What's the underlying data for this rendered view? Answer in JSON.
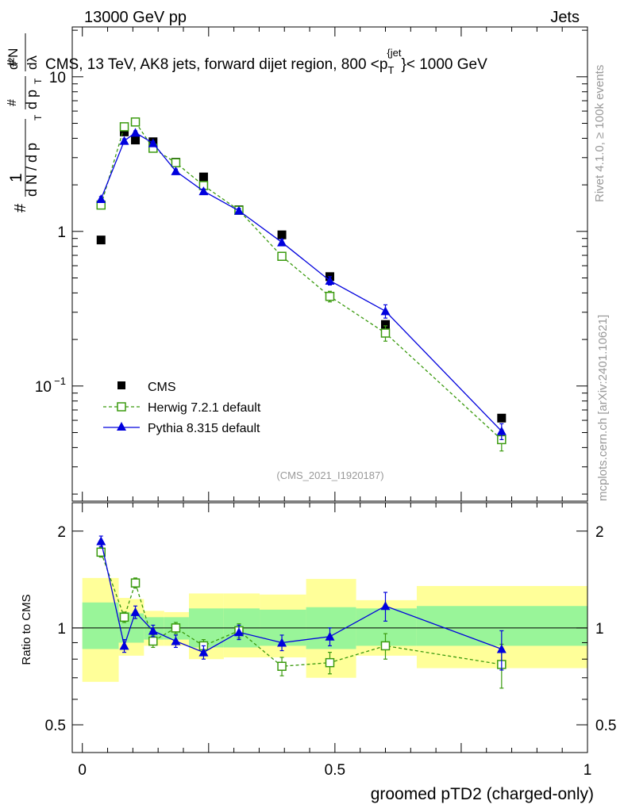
{
  "header": {
    "left": "13000 GeV pp",
    "right": "Jets"
  },
  "chart_data": [
    {
      "type": "scatter",
      "panel": "main",
      "title": "CMS, 13 TeV, AK8 jets, forward dijet region, 800 <p_T^{jet}< 1000 GeV",
      "title_parts": {
        "prefix": "CMS, 13 TeV, AK8 jets, forward dijet region, 800 <p",
        "sub": "T",
        "sup": "{jet",
        "suffix": "}< 1000 GeV"
      },
      "ylabel": "1/N dN/dp_T d²N/dp_T dλ",
      "ylabel_parts": {
        "hash": "#",
        "one": "1",
        "dN_dpT": "d N / d p",
        "T": "T",
        "d2N": "d²N",
        "dpT_dl": "d p",
        "dlambda": "dλ"
      },
      "yscale": "log",
      "ylim": [
        0.018,
        21
      ],
      "xlim": [
        -0.02,
        1.0
      ],
      "y_ticks": [
        {
          "value": 10,
          "label": "10",
          "exp": ""
        },
        {
          "value": 1,
          "label": "1",
          "exp": ""
        },
        {
          "value": 0.1,
          "label": "10",
          "exp": "−1"
        }
      ],
      "series": [
        {
          "name": "CMS",
          "marker": "square-filled",
          "color": "#000000",
          "x": [
            0.037,
            0.083,
            0.105,
            0.14,
            0.185,
            0.24,
            0.31,
            0.395,
            0.49,
            0.6,
            0.83
          ],
          "y": [
            0.88,
            4.4,
            3.9,
            3.8,
            2.8,
            2.25,
            1.38,
            0.95,
            0.51,
            0.25,
            0.062
          ]
        },
        {
          "name": "Herwig 7.2.1 default",
          "marker": "square-open",
          "style": "dashed",
          "color": "#3a9a0e",
          "x": [
            0.037,
            0.083,
            0.105,
            0.14,
            0.185,
            0.24,
            0.31,
            0.395,
            0.49,
            0.6,
            0.83
          ],
          "y": [
            1.48,
            4.75,
            5.1,
            3.45,
            2.78,
            1.98,
            1.37,
            0.69,
            0.38,
            0.22,
            0.045
          ],
          "err": [
            0.08,
            0.15,
            0.15,
            0.12,
            0.1,
            0.08,
            0.06,
            0.04,
            0.03,
            0.025,
            0.007
          ]
        },
        {
          "name": "Pythia 8.315 default",
          "marker": "triangle-filled",
          "style": "solid",
          "color": "#0000dd",
          "x": [
            0.037,
            0.083,
            0.105,
            0.14,
            0.185,
            0.24,
            0.31,
            0.395,
            0.49,
            0.6,
            0.83
          ],
          "y": [
            1.62,
            3.85,
            4.35,
            3.72,
            2.45,
            1.82,
            1.36,
            0.85,
            0.48,
            0.305,
            0.051
          ],
          "err": [
            0.06,
            0.12,
            0.12,
            0.1,
            0.08,
            0.06,
            0.05,
            0.04,
            0.03,
            0.03,
            0.006
          ]
        }
      ],
      "legend": {
        "placement": "lower-left",
        "entries": [
          "CMS",
          "Herwig 7.2.1 default",
          "Pythia 8.315 default"
        ]
      },
      "annotation": "(CMS_2021_I1920187)"
    },
    {
      "type": "scatter",
      "panel": "ratio",
      "ylabel": "Ratio to CMS",
      "xlabel": "groomed pTD2 (charged-only)",
      "yscale": "log",
      "ylim": [
        0.41,
        2.45
      ],
      "xlim": [
        -0.02,
        1.0
      ],
      "x_ticks": [
        {
          "value": 0,
          "label": "0"
        },
        {
          "value": 0.5,
          "label": "0.5"
        },
        {
          "value": 1,
          "label": "1"
        }
      ],
      "y_ticks": [
        {
          "value": 2,
          "label": "2"
        },
        {
          "value": 1,
          "label": "1"
        },
        {
          "value": 0.5,
          "label": "0.5"
        }
      ],
      "uncertainty_bands": [
        {
          "x": [
            0.0,
            0.072
          ],
          "inner": [
            0.86,
            1.2
          ],
          "outer": [
            0.68,
            1.43
          ]
        },
        {
          "x": [
            0.072,
            0.094
          ],
          "inner": [
            0.9,
            1.12
          ],
          "outer": [
            0.82,
            1.24
          ]
        },
        {
          "x": [
            0.094,
            0.122
          ],
          "inner": [
            0.9,
            1.11
          ],
          "outer": [
            0.82,
            1.23
          ]
        },
        {
          "x": [
            0.122,
            0.162
          ],
          "inner": [
            0.92,
            1.08
          ],
          "outer": [
            0.88,
            1.13
          ]
        },
        {
          "x": [
            0.162,
            0.211
          ],
          "inner": [
            0.92,
            1.08
          ],
          "outer": [
            0.88,
            1.12
          ]
        },
        {
          "x": [
            0.211,
            0.28
          ],
          "inner": [
            0.87,
            1.15
          ],
          "outer": [
            0.8,
            1.28
          ]
        },
        {
          "x": [
            0.28,
            0.351
          ],
          "inner": [
            0.87,
            1.15
          ],
          "outer": [
            0.81,
            1.28
          ]
        },
        {
          "x": [
            0.351,
            0.443
          ],
          "inner": [
            0.88,
            1.14
          ],
          "outer": [
            0.81,
            1.27
          ]
        },
        {
          "x": [
            0.443,
            0.542
          ],
          "inner": [
            0.86,
            1.16
          ],
          "outer": [
            0.7,
            1.42
          ]
        },
        {
          "x": [
            0.542,
            0.662
          ],
          "inner": [
            0.88,
            1.15
          ],
          "outer": [
            0.82,
            1.22
          ]
        },
        {
          "x": [
            0.662,
            1.0
          ],
          "inner": [
            0.88,
            1.17
          ],
          "outer": [
            0.75,
            1.35
          ]
        }
      ],
      "series": [
        {
          "name": "Herwig 7.2.1 default",
          "marker": "square-open",
          "style": "dashed",
          "color": "#3a9a0e",
          "x": [
            0.037,
            0.083,
            0.105,
            0.14,
            0.185,
            0.24,
            0.31,
            0.395,
            0.49,
            0.6,
            0.83
          ],
          "y": [
            1.72,
            1.08,
            1.38,
            0.91,
            1.0,
            0.88,
            0.98,
            0.76,
            0.78,
            0.88,
            0.77
          ],
          "err": [
            0.06,
            0.04,
            0.05,
            0.04,
            0.04,
            0.04,
            0.05,
            0.05,
            0.06,
            0.08,
            0.12
          ]
        },
        {
          "name": "Pythia 8.315 default",
          "marker": "triangle-filled",
          "style": "solid",
          "color": "#0000dd",
          "x": [
            0.037,
            0.083,
            0.105,
            0.14,
            0.185,
            0.24,
            0.31,
            0.395,
            0.49,
            0.6,
            0.83
          ],
          "y": [
            1.86,
            0.88,
            1.12,
            0.98,
            0.91,
            0.84,
            0.97,
            0.9,
            0.94,
            1.17,
            0.86
          ],
          "err": [
            0.07,
            0.04,
            0.05,
            0.04,
            0.04,
            0.04,
            0.05,
            0.05,
            0.06,
            0.12,
            0.12
          ]
        }
      ],
      "reference_line": 1
    }
  ],
  "side_labels": {
    "rivet": "Rivet 4.1.0, ≥ 100k events",
    "mcplots": "mcplots.cern.ch [arXiv:2401.10621]"
  },
  "colors": {
    "cms": "#000000",
    "herwig": "#3a9a0e",
    "pythia": "#0000dd",
    "band_inner": "#99f599",
    "band_outer": "#ffff99"
  }
}
